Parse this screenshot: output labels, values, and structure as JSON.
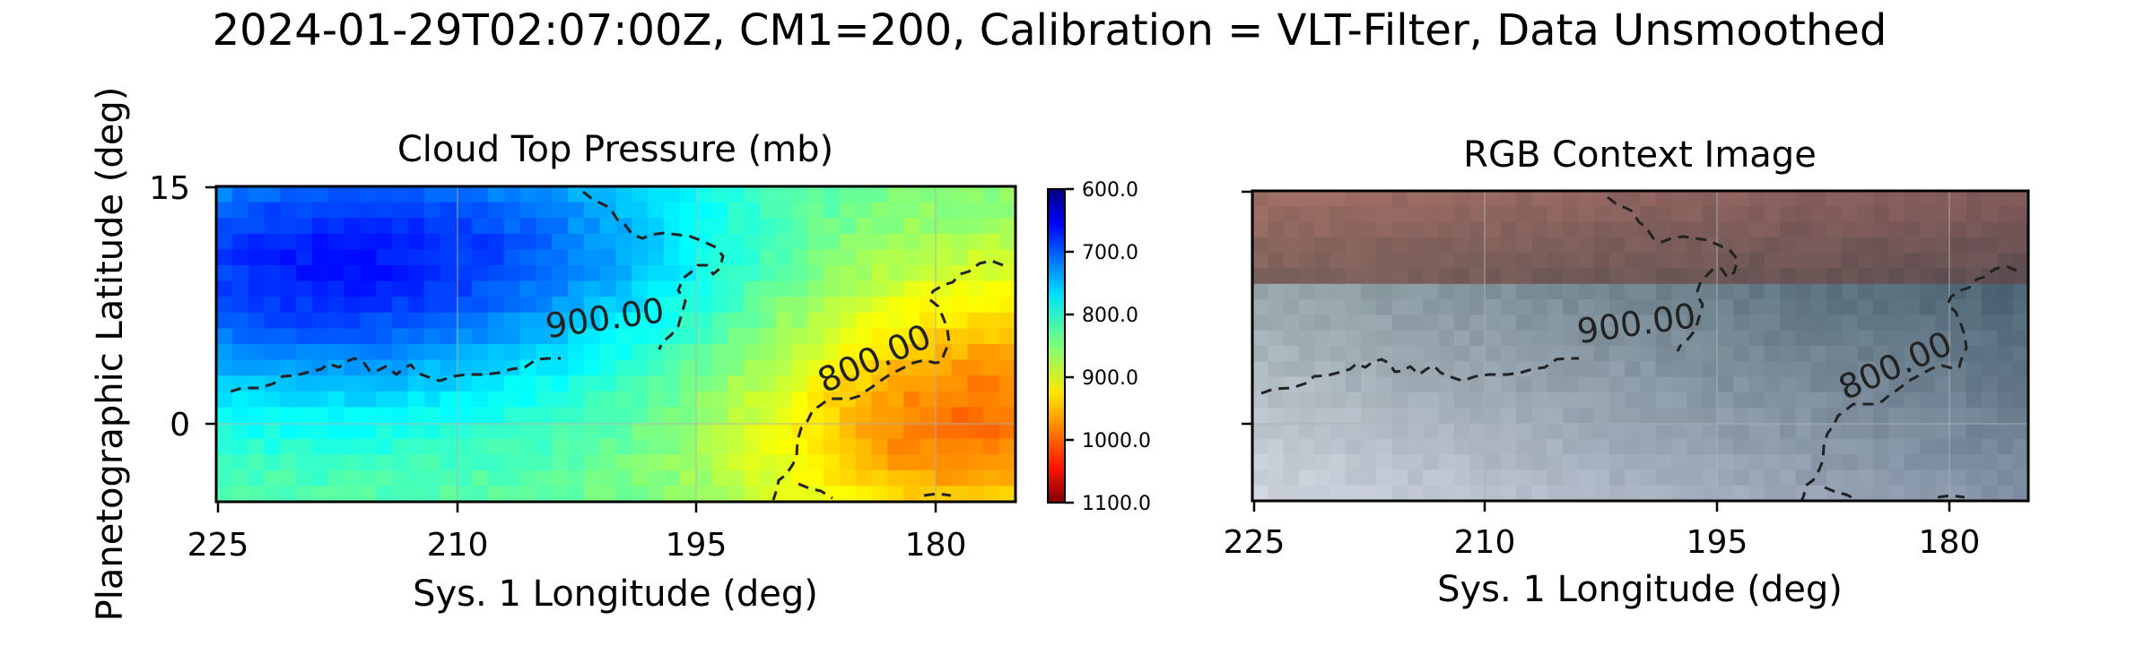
{
  "figure": {
    "suptitle": "2024-01-29T02:07:00Z, CM1=200, Calibration = VLT-Filter, Data Unsmoothed"
  },
  "chart_data": [
    {
      "type": "heatmap",
      "title": "Cloud Top Pressure (mb)",
      "xlabel": "Sys. 1 Longitude (deg)",
      "ylabel": "Planetographic Latitude (deg)",
      "xlim": [
        225,
        175
      ],
      "ylim": [
        -5,
        15
      ],
      "xticks": [
        225,
        210,
        195,
        180
      ],
      "yticks": [
        15,
        0
      ],
      "xtick_labels": [
        "225",
        "210",
        "195",
        "180"
      ],
      "ytick_labels": [
        "15",
        "0"
      ],
      "colormap": "jet_r",
      "colorbar": {
        "ticks": [
          600,
          700,
          800,
          900,
          1000,
          1100
        ],
        "tick_labels": [
          "600.0",
          "700.0",
          "800.0",
          "900.0",
          "1000.0",
          "1100.0"
        ],
        "range": [
          600,
          1100
        ]
      },
      "contours": [
        {
          "level": 900,
          "label": "900.00"
        },
        {
          "level": 800,
          "label": "800.00"
        }
      ]
    },
    {
      "type": "image",
      "title": "RGB Context Image",
      "xlabel": "Sys. 1 Longitude (deg)",
      "xlim": [
        225,
        175
      ],
      "ylim": [
        -5,
        15
      ],
      "xticks": [
        225,
        210,
        195,
        180
      ],
      "xtick_labels": [
        "225",
        "210",
        "195",
        "180"
      ],
      "yticks": [
        15,
        0
      ],
      "contours": [
        {
          "level": 900,
          "label": "900.00"
        },
        {
          "level": 800,
          "label": "800.00"
        }
      ]
    }
  ]
}
